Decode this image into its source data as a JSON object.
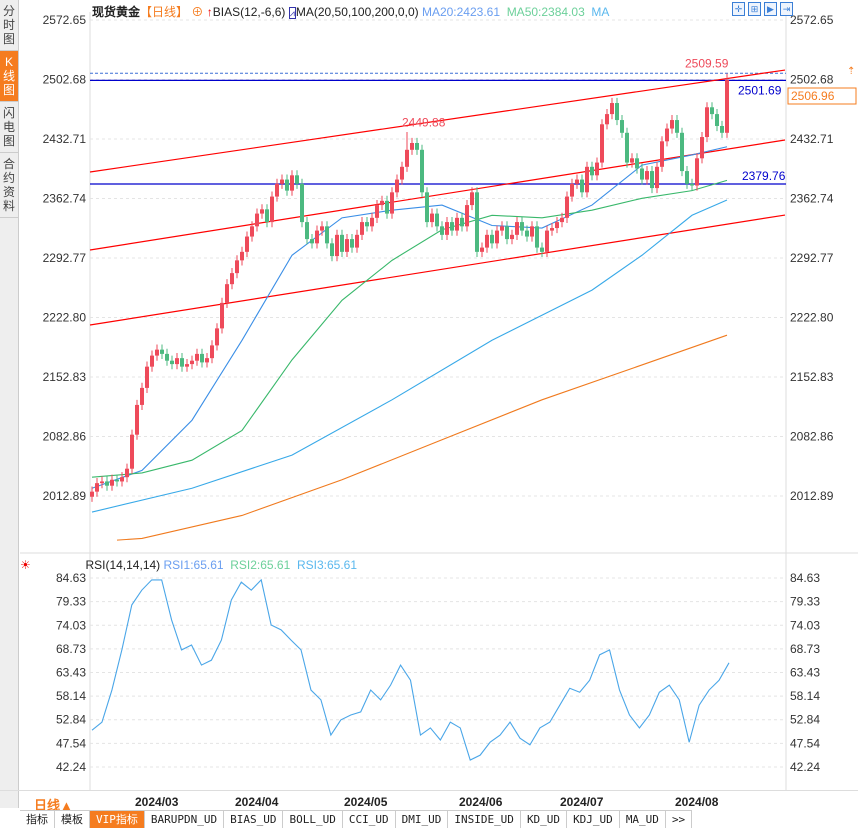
{
  "sidebar": {
    "tabs": [
      {
        "label": "分时图",
        "active": false
      },
      {
        "label": "K线图",
        "active": true
      },
      {
        "label": "闪电图",
        "active": false
      },
      {
        "label": "合约资料",
        "active": false
      }
    ]
  },
  "header": {
    "symbol": "现货黄金",
    "period": "【日线】",
    "bias": "BIAS(12,-6,6)",
    "ma_label": "MA(20,50,100,200,0,0)",
    "ma20": "MA20:2423.61",
    "ma50": "MA50:2384.03",
    "ma_more": "MA",
    "toolbar_icons": [
      "crosshair-icon",
      "zoom-in-icon",
      "play-icon",
      "step-forward-icon"
    ]
  },
  "rsi_header": {
    "label": "RSI(14,14,14)",
    "rsi1": "RSI1:65.61",
    "rsi2": "RSI2:65.61",
    "rsi3": "RSI3:65.61"
  },
  "colors": {
    "up": "#ee4a5a",
    "down": "#4cb980",
    "ma20": "#3a8ee6",
    "ma50": "#39b86b",
    "ma100": "#38a9e8",
    "ma200": "#f07a1e",
    "channel": "#ff0000",
    "hline": "#0000cc",
    "accent": "#f57c1f"
  },
  "chart_data": [
    {
      "type": "candlestick",
      "title": "现货黄金",
      "yticks": [
        "2572.65",
        "2502.68",
        "2432.71",
        "2362.74",
        "2292.77",
        "2222.80",
        "2152.83",
        "2082.86",
        "2012.89"
      ],
      "ylim": [
        2012.89,
        2572.65
      ],
      "xticks": [
        "2024/03",
        "2024/04",
        "2024/05",
        "2024/06",
        "2024/07",
        "2024/08"
      ],
      "close": [
        2018,
        2028,
        2030,
        2025,
        2032,
        2030,
        2035,
        2045,
        2085,
        2120,
        2140,
        2165,
        2178,
        2185,
        2180,
        2172,
        2168,
        2175,
        2165,
        2168,
        2172,
        2180,
        2170,
        2175,
        2190,
        2210,
        2240,
        2262,
        2275,
        2290,
        2300,
        2318,
        2330,
        2345,
        2350,
        2335,
        2365,
        2380,
        2385,
        2372,
        2390,
        2380,
        2335,
        2315,
        2310,
        2325,
        2330,
        2310,
        2295,
        2320,
        2300,
        2315,
        2305,
        2320,
        2335,
        2330,
        2340,
        2355,
        2360,
        2345,
        2370,
        2385,
        2400,
        2420,
        2428,
        2420,
        2370,
        2335,
        2345,
        2330,
        2320,
        2335,
        2325,
        2340,
        2330,
        2355,
        2370,
        2300,
        2305,
        2320,
        2310,
        2325,
        2330,
        2315,
        2320,
        2335,
        2325,
        2318,
        2330,
        2305,
        2300,
        2325,
        2328,
        2335,
        2340,
        2365,
        2380,
        2385,
        2370,
        2400,
        2390,
        2405,
        2450,
        2462,
        2475,
        2455,
        2440,
        2405,
        2410,
        2398,
        2385,
        2395,
        2375,
        2400,
        2430,
        2445,
        2455,
        2440,
        2395,
        2380,
        2378,
        2410,
        2435,
        2470,
        2462,
        2448,
        2440,
        2502
      ],
      "ma": {
        "ma20": {
          "idx": [
            0,
            10,
            20,
            30,
            40,
            50,
            60,
            70,
            80,
            90,
            100,
            110,
            120,
            127
          ],
          "val": [
            2022,
            2043,
            2102,
            2196,
            2296,
            2340,
            2349,
            2355,
            2331,
            2328,
            2355,
            2402,
            2414,
            2423.61
          ]
        },
        "ma50": {
          "idx": [
            0,
            10,
            20,
            30,
            40,
            50,
            60,
            70,
            80,
            90,
            100,
            110,
            120,
            127
          ],
          "val": [
            2035,
            2040,
            2055,
            2090,
            2173,
            2243,
            2290,
            2326,
            2343,
            2340,
            2349,
            2363,
            2372,
            2384.03
          ]
        },
        "ma100": {
          "idx": [
            0,
            20,
            40,
            60,
            80,
            100,
            110,
            120,
            127
          ],
          "val": [
            1994,
            2022,
            2061,
            2126,
            2196,
            2255,
            2296,
            2343,
            2361
          ]
        },
        "ma200": {
          "idx": [
            5,
            10,
            30,
            50,
            70,
            90,
            110,
            127
          ],
          "val": [
            1961,
            1963,
            1990,
            2032,
            2079,
            2126,
            2167,
            2202
          ]
        }
      },
      "channel": [
        {
          "idx": [
            -0.4,
            138.6
          ],
          "val": [
            2393.9,
            2513.8
          ]
        },
        {
          "idx": [
            -0.4,
            138.6
          ],
          "val": [
            2302.2,
            2431.5
          ]
        },
        {
          "idx": [
            -0.4,
            138.6
          ],
          "val": [
            2214,
            2343.3
          ]
        }
      ],
      "hlines": [
        {
          "value": 2501.69,
          "label": "2501.69"
        },
        {
          "value": 2379.76,
          "label": "2379.76"
        }
      ],
      "annotations": [
        {
          "idx": 127,
          "value": 2509.59,
          "label": "2509.59"
        },
        {
          "idx": 63,
          "value": 2449.88,
          "label": "2449.88"
        }
      ],
      "last_price": "2506.96",
      "last_value": 2506.96
    },
    {
      "type": "line",
      "title": "RSI(14,14,14)",
      "yticks": [
        "84.63",
        "79.33",
        "74.03",
        "68.73",
        "63.43",
        "58.14",
        "52.84",
        "47.54",
        "42.24"
      ],
      "ylim": [
        42.24,
        84.63
      ],
      "values": [
        50.5,
        52.3,
        59.5,
        68.5,
        78.6,
        81.9,
        84.2,
        84.2,
        75.2,
        68.5,
        69.6,
        65.1,
        66.2,
        70.7,
        79.7,
        83.7,
        81.9,
        84.2,
        74.1,
        73.0,
        70.7,
        68.5,
        59.5,
        57.3,
        49.4,
        52.8,
        53.9,
        54.6,
        59.5,
        57.3,
        60.6,
        65.1,
        61.7,
        49.4,
        51.0,
        48.3,
        52.3,
        51.0,
        43.8,
        44.9,
        47.8,
        49.4,
        52.3,
        48.7,
        47.2,
        51.0,
        52.3,
        56.1,
        59.9,
        59.0,
        61.7,
        67.4,
        68.5,
        59.5,
        53.9,
        51.0,
        53.9,
        59.0,
        60.6,
        57.3,
        47.8,
        56.1,
        59.5,
        61.7,
        65.61
      ]
    }
  ],
  "footer": {
    "period": "日线▲",
    "tabs": [
      {
        "label": "指标",
        "active": false
      },
      {
        "label": "模板",
        "active": false
      },
      {
        "label": "VIP指标",
        "active": true
      },
      {
        "label": "BARUPDN_UD"
      },
      {
        "label": "BIAS_UD"
      },
      {
        "label": "BOLL_UD"
      },
      {
        "label": "CCI_UD"
      },
      {
        "label": "DMI_UD"
      },
      {
        "label": "INSIDE_UD"
      },
      {
        "label": "KD_UD"
      },
      {
        "label": "KDJ_UD"
      },
      {
        "label": "MA_UD"
      },
      {
        "label": ">>"
      }
    ]
  }
}
